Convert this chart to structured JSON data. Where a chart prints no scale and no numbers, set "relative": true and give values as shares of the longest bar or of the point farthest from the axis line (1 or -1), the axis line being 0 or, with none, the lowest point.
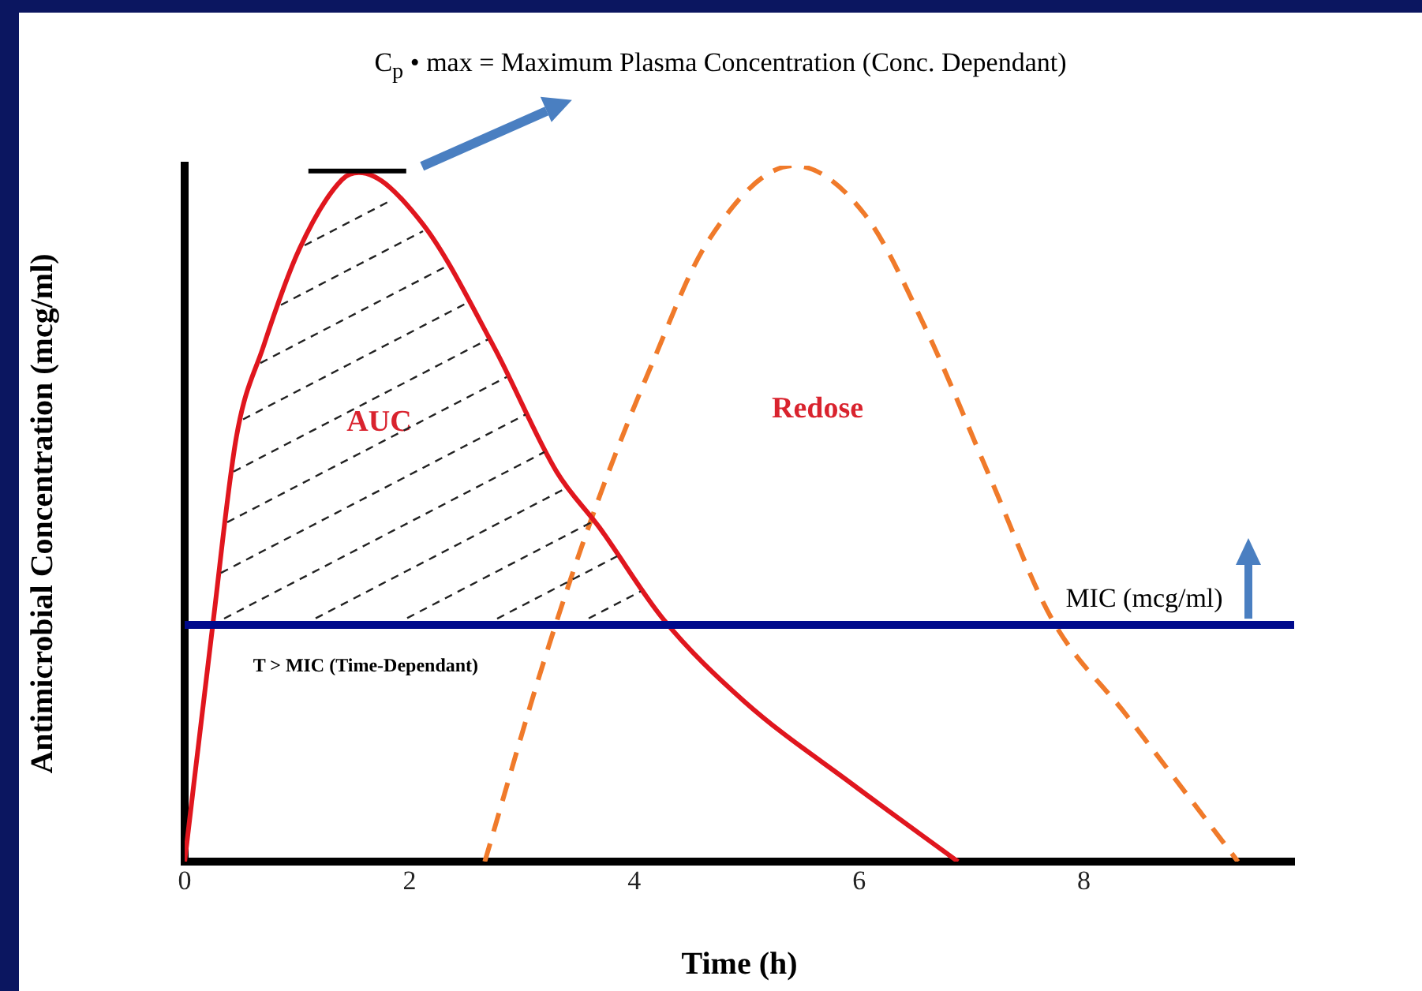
{
  "chart_data": {
    "type": "line",
    "title": "C$_{p}$ • max = Maximum Plasma Concentration (Conc. Dependant)",
    "xlabel": "Time (h)",
    "ylabel": "Antimicrobial Concentration (mcg/ml)",
    "relative": true,
    "xlim": [
      0,
      9.87
    ],
    "xticks": [
      0,
      2,
      4,
      6,
      8
    ],
    "grid": false,
    "legend": false,
    "marker": "none",
    "series": [
      {
        "type": "line",
        "color": "#e0161e",
        "line_style": "solid",
        "x": [
          0,
          0.25,
          0.46,
          0.7,
          1.02,
          1.4,
          1.55,
          2.1,
          2.75,
          3.31,
          3.69,
          4.25,
          4.98,
          5.95,
          6.88
        ],
        "values": [
          0,
          0.34,
          0.61,
          0.74,
          0.88,
          0.98,
          0.99,
          0.92,
          0.74,
          0.56,
          0.48,
          0.35,
          0.23,
          0.11,
          0
        ]
      },
      {
        "type": "line",
        "color": "#f07a2a",
        "line_style": "dashed",
        "x": [
          2.67,
          3.2,
          3.68,
          4.17,
          4.65,
          5.42,
          6.05,
          6.58,
          7.17,
          7.71,
          8.38,
          9.37
        ],
        "values": [
          0,
          0.29,
          0.52,
          0.72,
          0.89,
          1,
          0.93,
          0.77,
          0.55,
          0.35,
          0.21,
          0
        ]
      }
    ],
    "ref_lines": [
      {
        "axis": "y",
        "value": 0.34,
        "label": "MIC (mcg/ml)",
        "color": "#000a8c"
      }
    ],
    "annotations": [
      "AUC",
      "Redose",
      "T > MIC (Time-Dependant)"
    ]
  }
}
